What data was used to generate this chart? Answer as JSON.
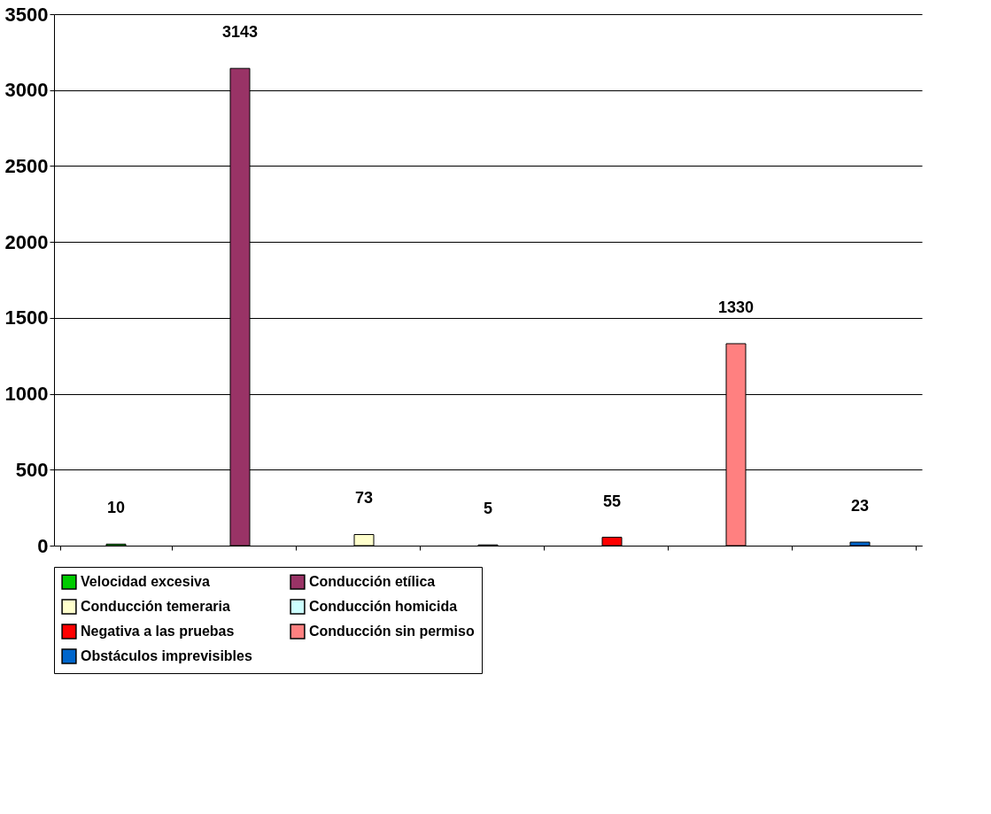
{
  "chart_data": {
    "type": "bar",
    "categories": [
      null,
      null,
      null,
      null,
      null,
      null,
      null
    ],
    "series": [
      {
        "name": "Velocidad excesiva",
        "color": "#00cc00",
        "values": [
          10,
          null,
          null,
          null,
          null,
          null,
          null
        ]
      },
      {
        "name": "Conducción etílica",
        "color": "#993366",
        "values": [
          null,
          3143,
          null,
          null,
          null,
          null,
          null
        ]
      },
      {
        "name": "Conducción temeraria",
        "color": "#ffffcc",
        "values": [
          null,
          null,
          73,
          null,
          null,
          null,
          null
        ]
      },
      {
        "name": "Conducción homicida",
        "color": "#ccffff",
        "values": [
          null,
          null,
          null,
          5,
          null,
          null,
          null
        ]
      },
      {
        "name": "Negativa a las pruebas",
        "color": "#ff0000",
        "values": [
          null,
          null,
          null,
          null,
          55,
          null,
          null
        ]
      },
      {
        "name": "Conducción sin permiso",
        "color": "#ff8080",
        "values": [
          null,
          null,
          null,
          null,
          null,
          1330,
          null
        ]
      },
      {
        "name": "Obstáculos imprevisibles",
        "color": "#0066cc",
        "values": [
          null,
          null,
          null,
          null,
          null,
          null,
          23
        ]
      }
    ],
    "ylim": [
      0,
      3500
    ],
    "yticks": [
      0,
      500,
      1000,
      1500,
      2000,
      2500,
      3000,
      3500
    ],
    "grid": "y",
    "legend": "bottom",
    "data_labels": true,
    "tick_labels": "y"
  }
}
